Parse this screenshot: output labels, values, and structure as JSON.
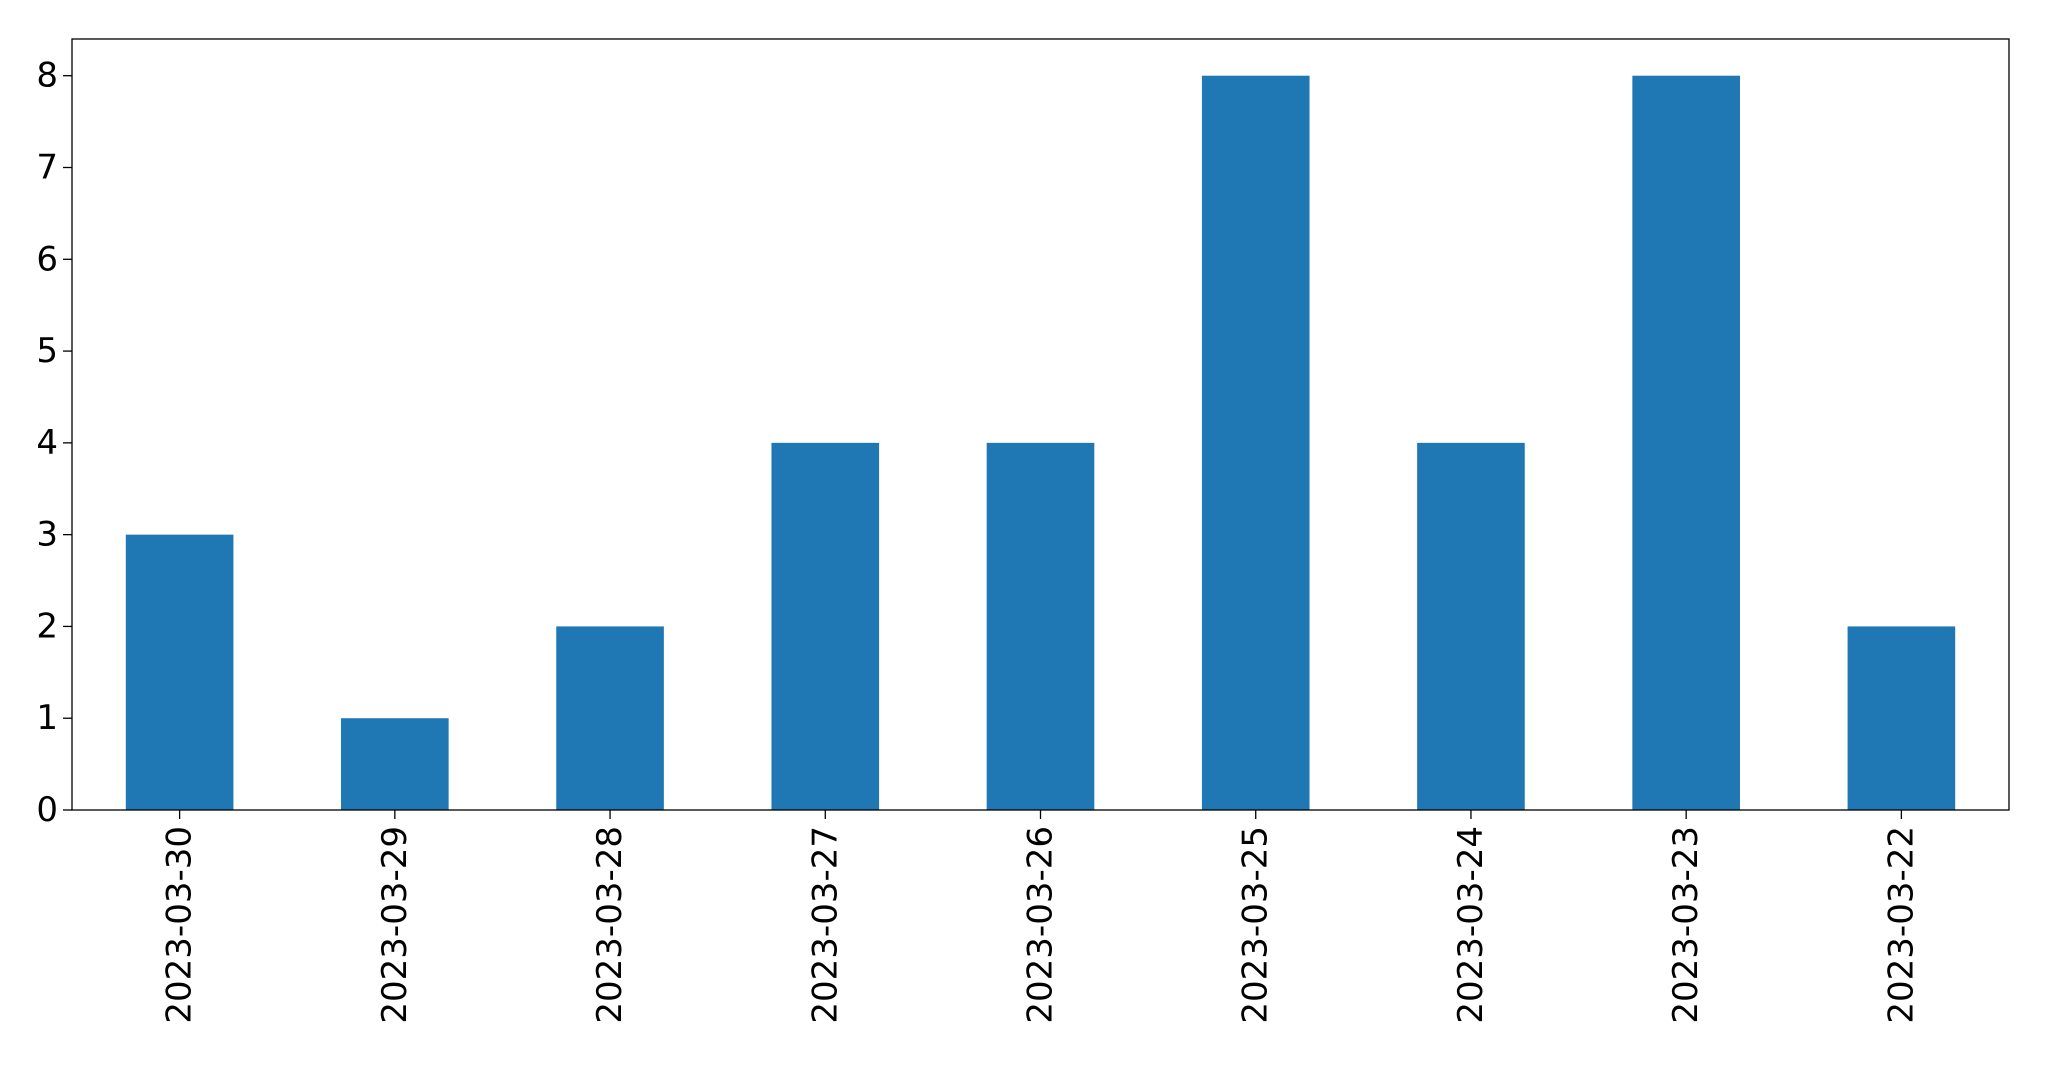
{
  "chart_data": {
    "type": "bar",
    "categories": [
      "2023-03-30",
      "2023-03-29",
      "2023-03-28",
      "2023-03-27",
      "2023-03-26",
      "2023-03-25",
      "2023-03-24",
      "2023-03-23",
      "2023-03-22"
    ],
    "values": [
      3,
      1,
      2,
      4,
      4,
      8,
      4,
      8,
      2
    ],
    "color": "#1f77b4",
    "ylim": [
      0,
      8.4
    ],
    "yticks": [
      0,
      1,
      2,
      3,
      4,
      5,
      6,
      7,
      8
    ],
    "grid": false
  }
}
